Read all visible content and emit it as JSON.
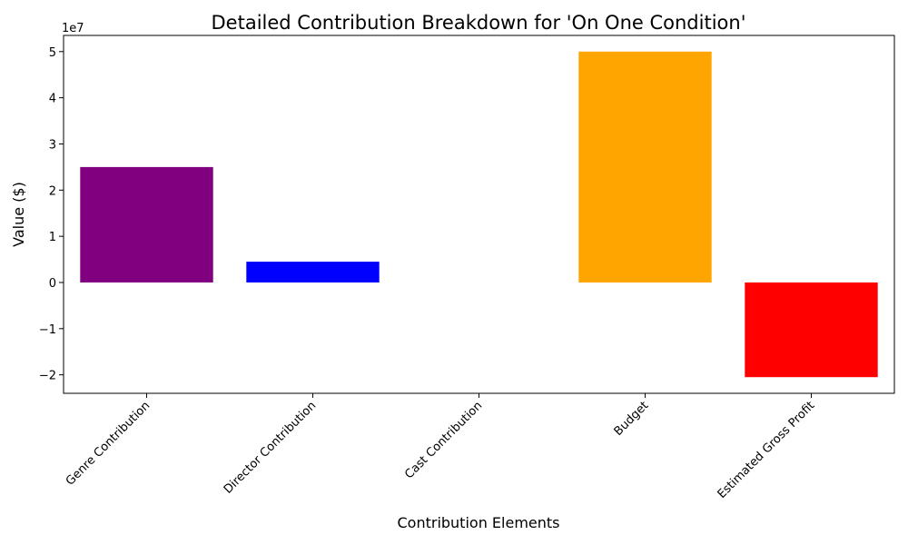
{
  "chart_data": {
    "type": "bar",
    "title": "Detailed Contribution Breakdown for 'On One Condition'",
    "xlabel": "Contribution Elements",
    "ylabel": "Value ($)",
    "offset_text": "1e7",
    "categories": [
      "Genre Contribution",
      "Director Contribution",
      "Cast Contribution",
      "Budget",
      "Estimated Gross Profit"
    ],
    "values": [
      25000000,
      4500000,
      0,
      50000000,
      -20500000
    ],
    "colors": [
      "#800080",
      "#0000ff",
      "#008000",
      "#ffa500",
      "#ff0000"
    ],
    "ylim": [
      -24000000,
      53500000
    ],
    "yticks": [
      -20000000,
      -10000000,
      0,
      10000000,
      20000000,
      30000000,
      40000000,
      50000000
    ],
    "ytick_labels": [
      "−2",
      "−1",
      "0",
      "1",
      "2",
      "3",
      "4",
      "5"
    ],
    "grid": false,
    "legend": "none"
  }
}
